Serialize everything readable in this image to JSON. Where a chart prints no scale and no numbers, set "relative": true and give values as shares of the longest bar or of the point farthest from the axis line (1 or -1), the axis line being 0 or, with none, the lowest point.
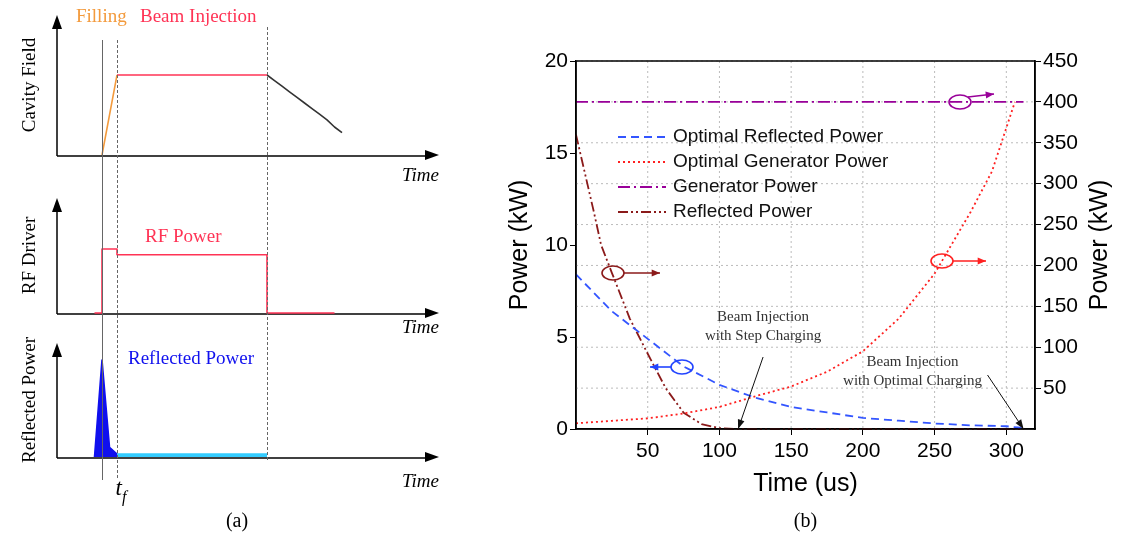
{
  "chart_data": [
    {
      "type": "line",
      "relative": true,
      "ylabel": "Cavity Field",
      "xlabel": "Time",
      "legend": false,
      "categories": [
        null,
        null,
        null,
        null,
        null,
        null,
        null,
        null,
        null,
        null,
        null,
        null,
        null,
        null,
        null,
        null,
        null,
        null,
        null,
        null,
        null,
        null,
        null,
        null,
        null,
        null,
        null,
        null,
        null,
        null,
        null,
        null,
        null,
        null,
        null,
        null,
        null,
        null,
        null,
        null,
        null,
        null,
        null,
        null,
        null,
        null,
        null,
        null,
        null
      ],
      "series": [
        {
          "name": "Filling",
          "color": "#f39a3c",
          "values": [
            null,
            null,
            null,
            null,
            null,
            null,
            0,
            0.5,
            1,
            null,
            null,
            null,
            null,
            null,
            null,
            null,
            null,
            null,
            null,
            null,
            null,
            null,
            null,
            null,
            null,
            null,
            null,
            null,
            null,
            null,
            null,
            null,
            null,
            null,
            null,
            null,
            null,
            null,
            null,
            null,
            null,
            null,
            null,
            null,
            null,
            null,
            null,
            null,
            null
          ]
        },
        {
          "name": "Beam Injection",
          "color": "#ff3355",
          "values": [
            null,
            null,
            null,
            null,
            null,
            null,
            null,
            null,
            1,
            1,
            1,
            1,
            1,
            1,
            1,
            1,
            1,
            1,
            1,
            1,
            1,
            1,
            1,
            1,
            1,
            1,
            1,
            1,
            1,
            null,
            null,
            null,
            null,
            null,
            null,
            null,
            null,
            null,
            null,
            null,
            null,
            null,
            null,
            null,
            null,
            null,
            null,
            null,
            null
          ]
        },
        {
          "color": "#333333",
          "values": [
            null,
            null,
            null,
            null,
            null,
            null,
            null,
            null,
            null,
            null,
            null,
            null,
            null,
            null,
            null,
            null,
            null,
            null,
            null,
            null,
            null,
            null,
            null,
            null,
            null,
            null,
            null,
            null,
            1,
            0.93,
            0.86,
            0.79,
            0.72,
            0.65,
            0.58,
            0.51,
            0.44,
            0.35,
            0.28,
            null,
            null,
            null,
            null,
            null,
            null,
            null,
            null,
            null,
            null
          ]
        }
      ]
    },
    {
      "type": "step",
      "relative": true,
      "ylabel": "RF Driver",
      "xlabel": "Time",
      "legend": false,
      "categories": [
        null,
        null,
        null,
        null,
        null,
        null,
        null,
        null,
        null,
        null,
        null,
        null,
        null,
        null,
        null,
        null,
        null,
        null,
        null,
        null,
        null,
        null,
        null,
        null,
        null,
        null,
        null,
        null,
        null,
        null,
        null,
        null,
        null,
        null,
        null,
        null,
        null,
        null,
        null,
        null,
        null,
        null,
        null,
        null,
        null,
        null,
        null,
        null,
        null
      ],
      "series": [
        {
          "name": "RF Power",
          "color": "#ff3355",
          "values": [
            null,
            null,
            null,
            null,
            null,
            0,
            1,
            1,
            0.91,
            0.91,
            0.91,
            0.91,
            0.91,
            0.91,
            0.91,
            0.91,
            0.91,
            0.91,
            0.91,
            0.91,
            0.91,
            0.91,
            0.91,
            0.91,
            0.91,
            0.91,
            0.91,
            0.91,
            0,
            0,
            0,
            0,
            0,
            0,
            0,
            0,
            0,
            0,
            null,
            null,
            null,
            null,
            null,
            null,
            null,
            null,
            null,
            null,
            null
          ]
        }
      ]
    },
    {
      "type": "area",
      "relative": true,
      "ylabel": "Reflected Power",
      "xlabel": "Time",
      "legend": false,
      "categories": [
        null,
        null,
        null,
        null,
        null,
        null,
        null,
        null,
        null,
        null,
        null,
        null,
        null,
        null,
        null,
        null,
        null,
        null,
        null,
        null,
        null,
        null,
        null,
        null,
        null,
        null,
        null,
        null,
        null,
        null,
        null,
        null,
        null,
        null,
        null,
        null,
        null,
        null,
        null,
        null,
        null,
        null,
        null,
        null,
        null,
        null,
        null,
        null,
        null
      ],
      "annotations": [
        "t$_{f}$",
        "(a)"
      ],
      "series": [
        {
          "name": "Reflected Power",
          "color": "#1010ee",
          "values": [
            null,
            null,
            null,
            null,
            null,
            0,
            1,
            0.1,
            0.03,
            null,
            null,
            null,
            null,
            null,
            null,
            null,
            null,
            null,
            null,
            null,
            null,
            null,
            null,
            null,
            null,
            null,
            null,
            null,
            null,
            null,
            null,
            null,
            null,
            null,
            null,
            null,
            null,
            null,
            null,
            null,
            null,
            null,
            null,
            null,
            null,
            null,
            null,
            null,
            null
          ]
        },
        {
          "color": "#33ccff",
          "values": [
            null,
            null,
            null,
            null,
            null,
            null,
            null,
            null,
            0.03,
            0.03,
            0.03,
            0.03,
            0.03,
            0.03,
            0.03,
            0.03,
            0.03,
            0.03,
            0.03,
            0.03,
            0.03,
            0.03,
            0.03,
            0.03,
            0.03,
            0.03,
            0.03,
            0.03,
            0.03,
            null,
            null,
            null,
            null,
            null,
            null,
            null,
            null,
            null,
            null,
            null,
            null,
            null,
            null,
            null,
            null,
            null,
            null,
            null,
            null
          ]
        }
      ]
    },
    {
      "type": "line",
      "xlabel": "Time (us)",
      "ylabel": "Power (kW)",
      "y2label": "Power (kW)",
      "legend": "top left",
      "grid": true,
      "xlim": [
        0,
        320
      ],
      "xticks": [
        50,
        100,
        150,
        200,
        250,
        300
      ],
      "ylim": [
        0,
        20
      ],
      "yticks": [
        0,
        5,
        10,
        15,
        20
      ],
      "y2lim": [
        0,
        450
      ],
      "y2ticks": [
        50,
        100,
        150,
        200,
        250,
        300,
        350,
        400,
        450
      ],
      "annotations": [
        {
          "text": "Beam Injection\nwith Step Charging",
          "x": 113,
          "y": 0
        },
        {
          "text": "Beam Injection\nwith Optimal Charging",
          "x": 312,
          "y": 0
        },
        "(b)"
      ],
      "series": [
        {
          "name": "Optimal Reflected Power",
          "color": "#3355ff",
          "line_style": "dashed",
          "x": [
            0,
            25,
            50,
            75,
            100,
            125,
            150,
            175,
            200,
            225,
            250,
            275,
            300,
            312
          ],
          "values": [
            8.4,
            6.4,
            4.9,
            3.4,
            2.4,
            1.7,
            1.2,
            0.9,
            0.6,
            0.45,
            0.3,
            0.2,
            0.15,
            0.05
          ]
        },
        {
          "name": "Optimal Generator Power",
          "color": "#ff2020",
          "line_style": "dotted",
          "axis": "y2",
          "x": [
            0,
            25,
            50,
            75,
            100,
            125,
            150,
            175,
            200,
            225,
            250,
            275,
            290,
            306
          ],
          "values": [
            7,
            10,
            13,
            19,
            27,
            40,
            52,
            70,
            95,
            135,
            190,
            265,
            315,
            400
          ]
        },
        {
          "name": "Generator Power",
          "color": "#990099",
          "line_style": "dashdot",
          "axis": "y2",
          "x": [
            0,
            312
          ],
          "values": [
            400,
            400
          ]
        },
        {
          "name": "Reflected Power",
          "color": "#8b1a1a",
          "line_style": "dashdotdot",
          "axis": "y2",
          "x": [
            0,
            12.5,
            17.5,
            25,
            37.5,
            50,
            62.5,
            75,
            87.5,
            100,
            110,
            312
          ],
          "values": [
            360,
            265,
            225,
            191,
            135,
            92,
            50,
            20,
            6,
            1,
            0,
            0
          ]
        }
      ]
    }
  ]
}
